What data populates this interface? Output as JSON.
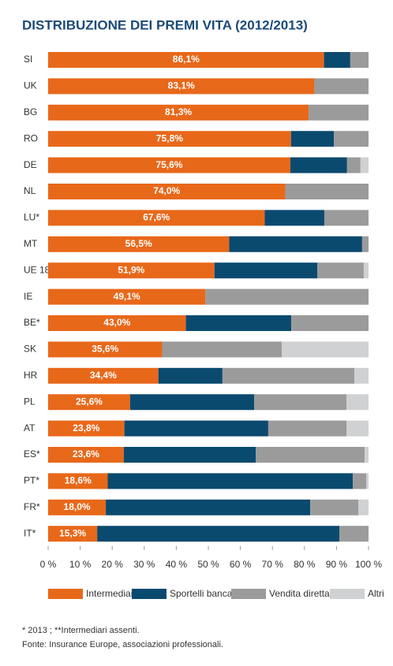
{
  "chart_data": {
    "type": "stacked-bar-horizontal",
    "title": "DISTRIBUZIONE DEI PREMI VITA (2012/2013)",
    "categories": [
      "SI",
      "UK",
      "BG",
      "RO",
      "DE",
      "NL",
      "LU*",
      "MT",
      "UE 18",
      "IE",
      "BE*",
      "SK",
      "HR",
      "PL",
      "AT",
      "ES*",
      "PT*",
      "FR*",
      "IT*"
    ],
    "series": [
      {
        "name": "Intermediari",
        "color": "#e8681a",
        "values": [
          86.1,
          83.1,
          81.3,
          75.8,
          75.6,
          74.0,
          67.6,
          56.5,
          51.9,
          49.1,
          43.0,
          35.6,
          34.4,
          25.6,
          23.8,
          23.6,
          18.6,
          18.0,
          15.3
        ],
        "value_labels": [
          "86,1%",
          "83,1%",
          "81,3%",
          "75,8%",
          "75,6%",
          "74,0%",
          "67,6%",
          "56,5%",
          "51,9%",
          "49,1%",
          "43,0%",
          "35,6%",
          "34,4%",
          "25,6%",
          "23,8%",
          "23,6%",
          "18,6%",
          "18,0%",
          "15,3%"
        ]
      },
      {
        "name": "Sportelli bancari",
        "color": "#0b4a6f",
        "values": [
          8.2,
          0,
          0,
          13.4,
          17.7,
          0,
          18.6,
          41.5,
          32.1,
          0,
          32.9,
          0,
          20.0,
          38.7,
          44.9,
          41.2,
          76.5,
          63.8,
          75.6
        ]
      },
      {
        "name": "Vendita diretta**",
        "color": "#9b9b9b",
        "values": [
          5.7,
          16.9,
          18.7,
          10.8,
          4.2,
          26.0,
          13.8,
          2.0,
          14.5,
          50.9,
          24.1,
          37.3,
          41.2,
          28.8,
          24.4,
          34.0,
          4.2,
          15.0,
          9.1
        ]
      },
      {
        "name": "Altri",
        "color": "#d0d1d2",
        "values": [
          0,
          0,
          0,
          0,
          2.5,
          0,
          0,
          0,
          1.5,
          0,
          0,
          27.1,
          4.4,
          6.9,
          6.9,
          1.2,
          0.7,
          3.2,
          0
        ]
      }
    ],
    "xlim": [
      0,
      100
    ],
    "xticks": [
      {
        "value": 0,
        "label": "0 %"
      },
      {
        "value": 10,
        "label": "10 %"
      },
      {
        "value": 20,
        "label": "20 %"
      },
      {
        "value": 30,
        "label": "30 %"
      },
      {
        "value": 40,
        "label": "40 %"
      },
      {
        "value": 50,
        "label": "50 %"
      },
      {
        "value": 60,
        "label": "60 %"
      },
      {
        "value": 70,
        "label": "70 %"
      },
      {
        "value": 80,
        "label": "80 %"
      },
      {
        "value": 90,
        "label": "90 %"
      },
      {
        "value": 100,
        "label": "100 %"
      }
    ],
    "notes": [
      "* 2013 ; **Intermediari assenti.",
      "Fonte: Insurance Europe, associazioni professionali."
    ]
  }
}
